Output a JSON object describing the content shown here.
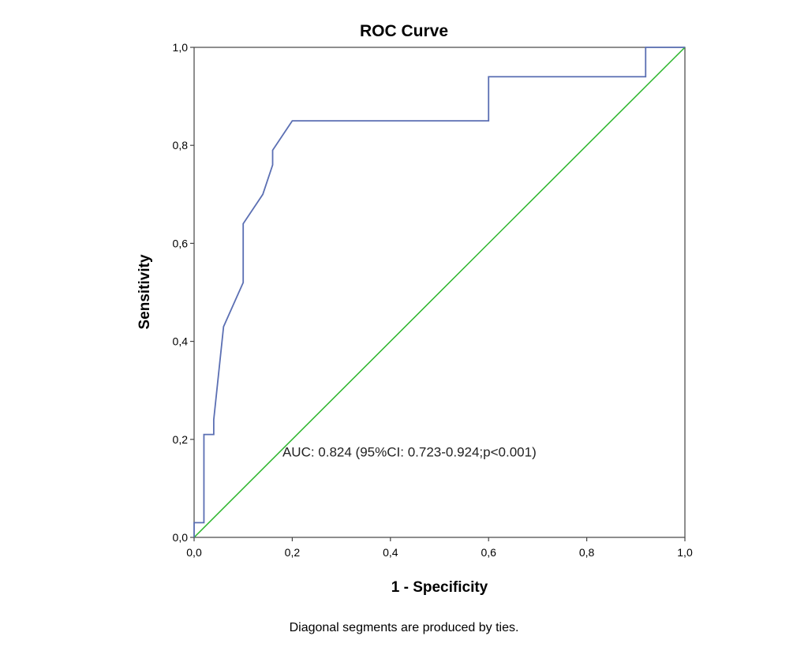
{
  "chart_data": {
    "type": "line",
    "title": "ROC Curve",
    "xlabel": "1 - Specificity",
    "ylabel": "Sensitivity",
    "xlim": [
      0,
      1
    ],
    "ylim": [
      0,
      1
    ],
    "x_ticks": [
      "0,0",
      "0,2",
      "0,4",
      "0,6",
      "0,8",
      "1,0"
    ],
    "y_ticks": [
      "0,0",
      "0,2",
      "0,4",
      "0,6",
      "0,8",
      "1,0"
    ],
    "grid": false,
    "series": [
      {
        "color": "#5b6fb3",
        "points": [
          [
            0.0,
            0.0
          ],
          [
            0.0,
            0.03
          ],
          [
            0.02,
            0.03
          ],
          [
            0.02,
            0.21
          ],
          [
            0.04,
            0.21
          ],
          [
            0.04,
            0.24
          ],
          [
            0.06,
            0.43
          ],
          [
            0.1,
            0.52
          ],
          [
            0.1,
            0.64
          ],
          [
            0.14,
            0.7
          ],
          [
            0.16,
            0.76
          ],
          [
            0.16,
            0.79
          ],
          [
            0.18,
            0.82
          ],
          [
            0.2,
            0.85
          ],
          [
            0.6,
            0.85
          ],
          [
            0.6,
            0.94
          ],
          [
            0.92,
            0.94
          ],
          [
            0.92,
            1.0
          ],
          [
            1.0,
            1.0
          ]
        ]
      },
      {
        "color": "#2bb52b",
        "points": [
          [
            0.0,
            0.0
          ],
          [
            1.0,
            1.0
          ]
        ]
      }
    ],
    "annotations": [
      {
        "text": "AUC: 0.824 (95%CI: 0.723-0.924;p<0.001)",
        "x": 0.18,
        "y": 0.165
      }
    ],
    "footnote": "Diagonal segments are produced by ties."
  }
}
